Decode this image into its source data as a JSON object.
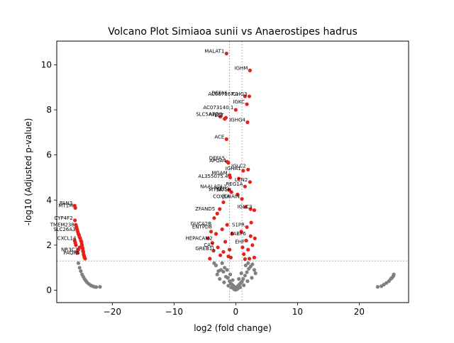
{
  "chart_data": {
    "type": "scatter",
    "title": "Volcano Plot Simiaoa sunii vs Anaerostipes hadrus",
    "xlabel": "log2 (fold change)",
    "ylabel": "-log10 (Adjusted p-value)",
    "xlim": [
      -29,
      28
    ],
    "ylim": [
      -0.55,
      11.05
    ],
    "x_ticks": [
      -20,
      -10,
      0,
      10,
      20
    ],
    "y_ticks": [
      0,
      2,
      4,
      6,
      8,
      10
    ],
    "grid": false,
    "thresholds": {
      "log2fc_left": -1,
      "log2fc_right": 1,
      "neg_log10_padj": 1.3
    },
    "colors": {
      "significant": "#e8201a",
      "nonsignificant": "#808080",
      "threshold_line": "#808080",
      "axes": "#000000"
    },
    "series": [
      {
        "values": [
          [
            -2.8,
            0.85
          ],
          [
            -2.4,
            0.9
          ],
          [
            -2.0,
            0.82
          ],
          [
            -1.6,
            0.6
          ],
          [
            -1.3,
            0.55
          ],
          [
            -1.0,
            0.4
          ],
          [
            -0.8,
            0.3
          ],
          [
            -0.6,
            0.25
          ],
          [
            -0.4,
            0.2
          ],
          [
            -0.2,
            0.15
          ],
          [
            0.0,
            0.1
          ],
          [
            0.2,
            0.14
          ],
          [
            0.4,
            0.2
          ],
          [
            0.6,
            0.26
          ],
          [
            0.8,
            0.32
          ],
          [
            1.0,
            0.38
          ],
          [
            1.2,
            0.5
          ],
          [
            1.5,
            0.65
          ],
          [
            1.8,
            0.8
          ],
          [
            2.1,
            0.95
          ],
          [
            2.4,
            1.05
          ],
          [
            2.7,
            1.15
          ],
          [
            3.0,
            0.9
          ],
          [
            -3.2,
            1.1
          ],
          [
            -3.5,
            1.2
          ],
          [
            -2.2,
            1.2
          ],
          [
            -1.8,
            1.0
          ],
          [
            -1.4,
            0.9
          ],
          [
            1.6,
            1.1
          ],
          [
            2.0,
            1.2
          ],
          [
            -0.9,
            0.7
          ],
          [
            -0.5,
            0.45
          ],
          [
            0.5,
            0.5
          ],
          [
            0.9,
            0.75
          ],
          [
            -1.2,
            0.2
          ],
          [
            1.3,
            0.22
          ],
          [
            -0.3,
            0.05
          ],
          [
            0.3,
            0.06
          ],
          [
            -0.1,
            0.02
          ],
          [
            0.1,
            0.03
          ],
          [
            -2.6,
            0.5
          ],
          [
            2.6,
            0.55
          ],
          [
            -3.0,
            0.7
          ],
          [
            3.2,
            0.75
          ],
          [
            -1.9,
            0.35
          ],
          [
            1.9,
            0.4
          ],
          [
            -0.7,
            0.12
          ],
          [
            0.7,
            0.13
          ],
          [
            -25.5,
            1.2
          ],
          [
            -25.3,
            1.0
          ],
          [
            -25.1,
            0.85
          ],
          [
            -24.9,
            0.7
          ],
          [
            -24.7,
            0.6
          ],
          [
            -24.5,
            0.5
          ],
          [
            -24.3,
            0.42
          ],
          [
            -24.1,
            0.35
          ],
          [
            -23.8,
            0.28
          ],
          [
            -23.5,
            0.22
          ],
          [
            -23.2,
            0.18
          ],
          [
            -22.9,
            0.15
          ],
          [
            -22.6,
            0.14
          ],
          [
            -22.0,
            0.15
          ],
          [
            23.0,
            0.15
          ],
          [
            23.6,
            0.18
          ],
          [
            24.0,
            0.25
          ],
          [
            24.4,
            0.32
          ],
          [
            24.8,
            0.4
          ],
          [
            25.1,
            0.5
          ],
          [
            25.3,
            0.55
          ],
          [
            25.5,
            0.62
          ],
          [
            25.6,
            0.7
          ]
        ]
      },
      {
        "values": [
          [
            -1.5,
            10.5
          ],
          [
            2.3,
            9.75
          ],
          [
            2.2,
            8.6
          ],
          [
            1.5,
            8.6
          ],
          [
            1.8,
            8.25
          ],
          [
            0.0,
            8.0
          ],
          [
            -2.5,
            7.7
          ],
          [
            -1.8,
            7.6
          ],
          [
            -1.6,
            7.65
          ],
          [
            1.9,
            7.45
          ],
          [
            -1.5,
            6.7
          ],
          [
            -1.4,
            5.7
          ],
          [
            -1.2,
            5.65
          ],
          [
            2.0,
            5.35
          ],
          [
            1.2,
            5.3
          ],
          [
            -1.0,
            5.1
          ],
          [
            -0.9,
            5.0
          ],
          [
            0.5,
            4.95
          ],
          [
            2.3,
            4.8
          ],
          [
            1.5,
            4.6
          ],
          [
            -1.1,
            4.45
          ],
          [
            -0.7,
            4.35
          ],
          [
            0.3,
            4.25
          ],
          [
            1.0,
            4.05
          ],
          [
            3.0,
            3.55
          ],
          [
            2.4,
            3.6
          ],
          [
            1.6,
            3.7
          ],
          [
            -2.0,
            3.9
          ],
          [
            -2.6,
            3.6
          ],
          [
            -3.0,
            3.4
          ],
          [
            -3.5,
            3.2
          ],
          [
            2.5,
            3.0
          ],
          [
            1.8,
            2.8
          ],
          [
            0.9,
            2.6
          ],
          [
            -0.6,
            2.5
          ],
          [
            -1.4,
            2.9
          ],
          [
            -2.2,
            2.7
          ],
          [
            -3.2,
            2.5
          ],
          [
            -4.0,
            2.6
          ],
          [
            -4.5,
            2.3
          ],
          [
            -3.8,
            2.1
          ],
          [
            -2.9,
            1.9
          ],
          [
            -2.0,
            1.7
          ],
          [
            -1.2,
            1.5
          ],
          [
            1.3,
            1.6
          ],
          [
            2.0,
            1.8
          ],
          [
            2.7,
            2.0
          ],
          [
            3.1,
            2.3
          ],
          [
            2.4,
            2.4
          ],
          [
            1.7,
            2.2
          ],
          [
            -1.7,
            2.15
          ],
          [
            -2.5,
            1.55
          ],
          [
            -3.6,
            1.75
          ],
          [
            -4.2,
            1.4
          ],
          [
            3.0,
            1.45
          ],
          [
            2.2,
            1.4
          ],
          [
            1.5,
            1.38
          ],
          [
            -1.0,
            1.8
          ],
          [
            -0.8,
            1.45
          ],
          [
            1.1,
            1.9
          ],
          [
            -26.1,
            3.75
          ],
          [
            -26.0,
            3.65
          ],
          [
            -26.05,
            3.1
          ],
          [
            -25.8,
            2.8
          ],
          [
            -25.6,
            2.6
          ],
          [
            -25.4,
            2.45
          ],
          [
            -25.2,
            2.3
          ],
          [
            -25.0,
            2.15
          ],
          [
            -24.9,
            2.0
          ],
          [
            -24.8,
            1.85
          ],
          [
            -24.7,
            1.7
          ],
          [
            -24.6,
            1.55
          ],
          [
            -24.5,
            1.45
          ],
          [
            -24.4,
            1.4
          ],
          [
            -25.9,
            2.9
          ],
          [
            -25.7,
            2.7
          ],
          [
            -25.5,
            2.5
          ],
          [
            -25.3,
            2.35
          ],
          [
            -25.1,
            2.2
          ],
          [
            -24.95,
            2.05
          ],
          [
            -24.85,
            1.9
          ],
          [
            -24.75,
            1.75
          ],
          [
            -24.65,
            1.6
          ],
          [
            -24.55,
            1.5
          ],
          [
            -25.7,
            1.65
          ],
          [
            -25.5,
            1.8
          ],
          [
            -25.3,
            1.9
          ],
          [
            -25.9,
            2.0
          ],
          [
            -26.0,
            2.1
          ],
          [
            -26.1,
            2.2
          ]
        ]
      }
    ],
    "annotations": [
      {
        "text": "MALAT1",
        "x": -1.5,
        "y": 10.5
      },
      {
        "text": "IGHM",
        "x": 2.3,
        "y": 9.75
      },
      {
        "text": "DEFA6",
        "x": -1.0,
        "y": 8.65
      },
      {
        "text": "IGHG3",
        "x": 2.2,
        "y": 8.6
      },
      {
        "text": "AC087167.1",
        "x": 0.8,
        "y": 8.6
      },
      {
        "text": "IGKC",
        "x": 1.8,
        "y": 8.25
      },
      {
        "text": "AC073140.1",
        "x": 0.0,
        "y": 8.0
      },
      {
        "text": "SLC5A12",
        "x": -2.5,
        "y": 7.7
      },
      {
        "text": "APOB",
        "x": -1.8,
        "y": 7.7
      },
      {
        "text": "LCT",
        "x": -1.6,
        "y": 7.65
      },
      {
        "text": "IGHG4",
        "x": 1.9,
        "y": 7.45
      },
      {
        "text": "ACE",
        "x": -1.5,
        "y": 6.7
      },
      {
        "text": "DEFA5",
        "x": -1.4,
        "y": 5.75
      },
      {
        "text": "APOA4",
        "x": -1.2,
        "y": 5.65
      },
      {
        "text": "IGLC2",
        "x": 2.0,
        "y": 5.4
      },
      {
        "text": "IGHA1",
        "x": 1.2,
        "y": 5.3
      },
      {
        "text": "MGAM",
        "x": -1.0,
        "y": 5.1
      },
      {
        "text": "AL355075.4",
        "x": -0.9,
        "y": 4.95
      },
      {
        "text": "LCN2",
        "x": 2.3,
        "y": 4.8
      },
      {
        "text": "REG1A",
        "x": 1.5,
        "y": 4.6
      },
      {
        "text": "NAALADL1",
        "x": -1.1,
        "y": 4.5
      },
      {
        "text": "MT1G",
        "x": -0.7,
        "y": 4.4
      },
      {
        "text": "MT1A",
        "x": -1.8,
        "y": 4.35
      },
      {
        "text": "MT1H",
        "x": -0.4,
        "y": 4.35
      },
      {
        "text": "COX5A",
        "x": -0.6,
        "y": 4.05
      },
      {
        "text": "JCHAIN",
        "x": 1.0,
        "y": 4.05
      },
      {
        "text": "PAN3",
        "x": -26.1,
        "y": 3.75
      },
      {
        "text": "MT1M",
        "x": -26.0,
        "y": 3.65
      },
      {
        "text": "IGLC3",
        "x": 3.0,
        "y": 3.6
      },
      {
        "text": "CYP4F2",
        "x": -26.05,
        "y": 3.1
      },
      {
        "text": "TMEM238",
        "x": -25.8,
        "y": 2.8
      },
      {
        "text": "SLC26A3",
        "x": -25.6,
        "y": 2.6
      },
      {
        "text": "ZFAND5",
        "x": -3.0,
        "y": 3.5
      },
      {
        "text": "ENTPD8",
        "x": -3.5,
        "y": 2.7
      },
      {
        "text": "GUCA2B",
        "x": -3.6,
        "y": 2.85
      },
      {
        "text": "HEPACAM2",
        "x": -3.4,
        "y": 2.2
      },
      {
        "text": "CXCL14",
        "x": -25.5,
        "y": 2.2
      },
      {
        "text": "CA2",
        "x": -3.2,
        "y": 1.9
      },
      {
        "text": "GREB1L",
        "x": -3.0,
        "y": 1.75
      },
      {
        "text": "NR3C2",
        "x": -25.2,
        "y": 1.7
      },
      {
        "text": "PAQR5",
        "x": -24.9,
        "y": 1.55
      },
      {
        "text": "S1PR",
        "x": 1.8,
        "y": 2.8
      },
      {
        "text": "FABP6",
        "x": 2.0,
        "y": 2.4
      },
      {
        "text": "EHF",
        "x": 1.8,
        "y": 2.05
      }
    ]
  }
}
